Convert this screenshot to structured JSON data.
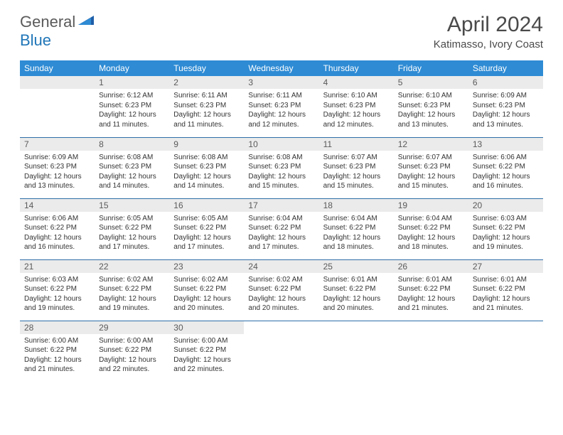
{
  "brand": {
    "name1": "General",
    "name2": "Blue"
  },
  "title": "April 2024",
  "location": "Katimasso, Ivory Coast",
  "colors": {
    "header_bg": "#2e8bd4",
    "header_text": "#ffffff",
    "daynum_bg": "#ebebeb",
    "daynum_text": "#5a5a5a",
    "border": "#2e6ea8",
    "accent": "#2176b8",
    "logo_gray": "#5a5a5a"
  },
  "dayNames": [
    "Sunday",
    "Monday",
    "Tuesday",
    "Wednesday",
    "Thursday",
    "Friday",
    "Saturday"
  ],
  "weeks": [
    [
      {
        "num": "",
        "sunrise": "",
        "sunset": "",
        "daylight": ""
      },
      {
        "num": "1",
        "sunrise": "Sunrise: 6:12 AM",
        "sunset": "Sunset: 6:23 PM",
        "daylight": "Daylight: 12 hours and 11 minutes."
      },
      {
        "num": "2",
        "sunrise": "Sunrise: 6:11 AM",
        "sunset": "Sunset: 6:23 PM",
        "daylight": "Daylight: 12 hours and 11 minutes."
      },
      {
        "num": "3",
        "sunrise": "Sunrise: 6:11 AM",
        "sunset": "Sunset: 6:23 PM",
        "daylight": "Daylight: 12 hours and 12 minutes."
      },
      {
        "num": "4",
        "sunrise": "Sunrise: 6:10 AM",
        "sunset": "Sunset: 6:23 PM",
        "daylight": "Daylight: 12 hours and 12 minutes."
      },
      {
        "num": "5",
        "sunrise": "Sunrise: 6:10 AM",
        "sunset": "Sunset: 6:23 PM",
        "daylight": "Daylight: 12 hours and 13 minutes."
      },
      {
        "num": "6",
        "sunrise": "Sunrise: 6:09 AM",
        "sunset": "Sunset: 6:23 PM",
        "daylight": "Daylight: 12 hours and 13 minutes."
      }
    ],
    [
      {
        "num": "7",
        "sunrise": "Sunrise: 6:09 AM",
        "sunset": "Sunset: 6:23 PM",
        "daylight": "Daylight: 12 hours and 13 minutes."
      },
      {
        "num": "8",
        "sunrise": "Sunrise: 6:08 AM",
        "sunset": "Sunset: 6:23 PM",
        "daylight": "Daylight: 12 hours and 14 minutes."
      },
      {
        "num": "9",
        "sunrise": "Sunrise: 6:08 AM",
        "sunset": "Sunset: 6:23 PM",
        "daylight": "Daylight: 12 hours and 14 minutes."
      },
      {
        "num": "10",
        "sunrise": "Sunrise: 6:08 AM",
        "sunset": "Sunset: 6:23 PM",
        "daylight": "Daylight: 12 hours and 15 minutes."
      },
      {
        "num": "11",
        "sunrise": "Sunrise: 6:07 AM",
        "sunset": "Sunset: 6:23 PM",
        "daylight": "Daylight: 12 hours and 15 minutes."
      },
      {
        "num": "12",
        "sunrise": "Sunrise: 6:07 AM",
        "sunset": "Sunset: 6:23 PM",
        "daylight": "Daylight: 12 hours and 15 minutes."
      },
      {
        "num": "13",
        "sunrise": "Sunrise: 6:06 AM",
        "sunset": "Sunset: 6:22 PM",
        "daylight": "Daylight: 12 hours and 16 minutes."
      }
    ],
    [
      {
        "num": "14",
        "sunrise": "Sunrise: 6:06 AM",
        "sunset": "Sunset: 6:22 PM",
        "daylight": "Daylight: 12 hours and 16 minutes."
      },
      {
        "num": "15",
        "sunrise": "Sunrise: 6:05 AM",
        "sunset": "Sunset: 6:22 PM",
        "daylight": "Daylight: 12 hours and 17 minutes."
      },
      {
        "num": "16",
        "sunrise": "Sunrise: 6:05 AM",
        "sunset": "Sunset: 6:22 PM",
        "daylight": "Daylight: 12 hours and 17 minutes."
      },
      {
        "num": "17",
        "sunrise": "Sunrise: 6:04 AM",
        "sunset": "Sunset: 6:22 PM",
        "daylight": "Daylight: 12 hours and 17 minutes."
      },
      {
        "num": "18",
        "sunrise": "Sunrise: 6:04 AM",
        "sunset": "Sunset: 6:22 PM",
        "daylight": "Daylight: 12 hours and 18 minutes."
      },
      {
        "num": "19",
        "sunrise": "Sunrise: 6:04 AM",
        "sunset": "Sunset: 6:22 PM",
        "daylight": "Daylight: 12 hours and 18 minutes."
      },
      {
        "num": "20",
        "sunrise": "Sunrise: 6:03 AM",
        "sunset": "Sunset: 6:22 PM",
        "daylight": "Daylight: 12 hours and 19 minutes."
      }
    ],
    [
      {
        "num": "21",
        "sunrise": "Sunrise: 6:03 AM",
        "sunset": "Sunset: 6:22 PM",
        "daylight": "Daylight: 12 hours and 19 minutes."
      },
      {
        "num": "22",
        "sunrise": "Sunrise: 6:02 AM",
        "sunset": "Sunset: 6:22 PM",
        "daylight": "Daylight: 12 hours and 19 minutes."
      },
      {
        "num": "23",
        "sunrise": "Sunrise: 6:02 AM",
        "sunset": "Sunset: 6:22 PM",
        "daylight": "Daylight: 12 hours and 20 minutes."
      },
      {
        "num": "24",
        "sunrise": "Sunrise: 6:02 AM",
        "sunset": "Sunset: 6:22 PM",
        "daylight": "Daylight: 12 hours and 20 minutes."
      },
      {
        "num": "25",
        "sunrise": "Sunrise: 6:01 AM",
        "sunset": "Sunset: 6:22 PM",
        "daylight": "Daylight: 12 hours and 20 minutes."
      },
      {
        "num": "26",
        "sunrise": "Sunrise: 6:01 AM",
        "sunset": "Sunset: 6:22 PM",
        "daylight": "Daylight: 12 hours and 21 minutes."
      },
      {
        "num": "27",
        "sunrise": "Sunrise: 6:01 AM",
        "sunset": "Sunset: 6:22 PM",
        "daylight": "Daylight: 12 hours and 21 minutes."
      }
    ],
    [
      {
        "num": "28",
        "sunrise": "Sunrise: 6:00 AM",
        "sunset": "Sunset: 6:22 PM",
        "daylight": "Daylight: 12 hours and 21 minutes."
      },
      {
        "num": "29",
        "sunrise": "Sunrise: 6:00 AM",
        "sunset": "Sunset: 6:22 PM",
        "daylight": "Daylight: 12 hours and 22 minutes."
      },
      {
        "num": "30",
        "sunrise": "Sunrise: 6:00 AM",
        "sunset": "Sunset: 6:22 PM",
        "daylight": "Daylight: 12 hours and 22 minutes."
      },
      {
        "num": "",
        "sunrise": "",
        "sunset": "",
        "daylight": ""
      },
      {
        "num": "",
        "sunrise": "",
        "sunset": "",
        "daylight": ""
      },
      {
        "num": "",
        "sunrise": "",
        "sunset": "",
        "daylight": ""
      },
      {
        "num": "",
        "sunrise": "",
        "sunset": "",
        "daylight": ""
      }
    ]
  ]
}
